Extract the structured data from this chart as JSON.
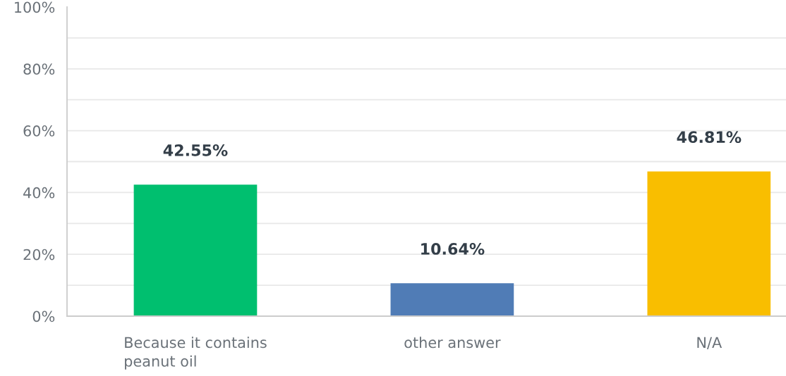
{
  "chart_data": {
    "type": "bar",
    "categories": [
      "Because it contains peanut oil",
      "other answer",
      "N/A"
    ],
    "values": [
      42.55,
      10.64,
      46.81
    ],
    "colors": [
      "#00bf6f",
      "#507cb6",
      "#f9be00"
    ],
    "value_labels": [
      "42.55%",
      "10.64%",
      "46.81%"
    ],
    "ylim": [
      0,
      100
    ],
    "yticks": [
      {
        "value": 0,
        "label": "0%"
      },
      {
        "value": 10,
        "label": null
      },
      {
        "value": 20,
        "label": "20%"
      },
      {
        "value": 30,
        "label": null
      },
      {
        "value": 40,
        "label": "40%"
      },
      {
        "value": 50,
        "label": null
      },
      {
        "value": 60,
        "label": "60%"
      },
      {
        "value": 70,
        "label": null
      },
      {
        "value": 80,
        "label": "80%"
      },
      {
        "value": 90,
        "label": null
      },
      {
        "value": 100,
        "label": "100%"
      }
    ],
    "grid": "y"
  }
}
